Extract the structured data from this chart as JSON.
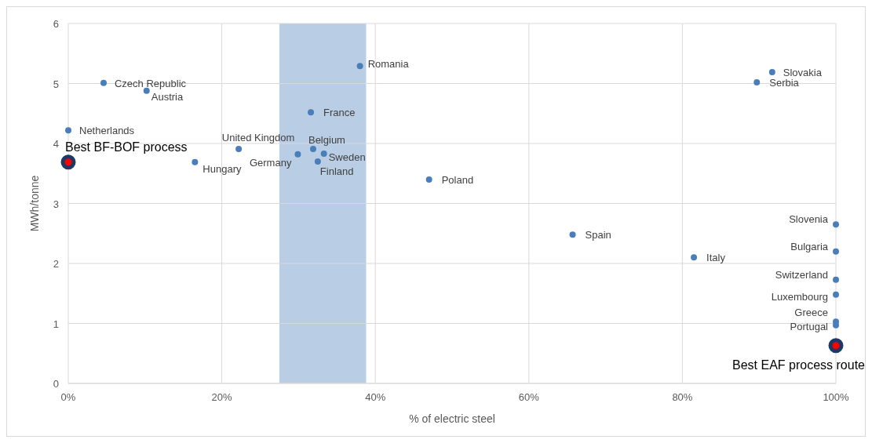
{
  "chart_data": {
    "type": "scatter",
    "xlabel": "% of electric steel",
    "ylabel": "MWh/tonne",
    "xlim": [
      0,
      100
    ],
    "xticks": [
      {
        "value": 0,
        "label": "0%"
      },
      {
        "value": 20,
        "label": "20%"
      },
      {
        "value": 40,
        "label": "40%"
      },
      {
        "value": 60,
        "label": "60%"
      },
      {
        "value": 80,
        "label": "80%"
      },
      {
        "value": 100,
        "label": "100%"
      }
    ],
    "ylim": [
      0,
      6
    ],
    "yticks": [
      0,
      1,
      2,
      3,
      4,
      5,
      6
    ],
    "grid": true,
    "marker": "circle",
    "bands": [
      {
        "axis": "x",
        "from": 27.5,
        "to": 38.8,
        "color": "#b9cde5"
      }
    ],
    "series": [
      {
        "color": "#4a7ebb",
        "x": [
          0,
          4.6,
          10.2,
          16.5,
          22.2,
          29.9,
          31.9,
          32.5,
          33.3,
          31.6,
          38.0,
          47.0,
          65.7,
          81.5,
          89.7,
          91.7,
          100,
          100,
          100,
          100,
          100,
          100
        ],
        "values": [
          4.22,
          5.01,
          4.88,
          3.69,
          3.91,
          3.82,
          3.91,
          3.7,
          3.83,
          4.52,
          5.29,
          3.4,
          2.48,
          2.1,
          5.02,
          5.19,
          2.65,
          2.2,
          1.73,
          1.48,
          1.03,
          0.97
        ]
      },
      {
        "color": "#ff0000",
        "x": [
          0,
          100
        ],
        "values": [
          3.69,
          0.63
        ]
      }
    ],
    "annotations": [
      {
        "text": "Netherlands",
        "x": 0,
        "y": 4.22
      },
      {
        "text": "Czech Republic",
        "x": 4.6,
        "y": 5.01
      },
      {
        "text": "Austria",
        "x": 10.2,
        "y": 4.88
      },
      {
        "text": "Hungary",
        "x": 16.5,
        "y": 3.69
      },
      {
        "text": "United Kingdom",
        "x": 22.2,
        "y": 3.91
      },
      {
        "text": "Germany",
        "x": 29.9,
        "y": 3.82
      },
      {
        "text": "Belgium",
        "x": 31.9,
        "y": 3.91
      },
      {
        "text": "Finland",
        "x": 32.5,
        "y": 3.7
      },
      {
        "text": "Sweden",
        "x": 33.3,
        "y": 3.83
      },
      {
        "text": "France",
        "x": 31.6,
        "y": 4.52
      },
      {
        "text": "Romania",
        "x": 38.0,
        "y": 5.29
      },
      {
        "text": "Poland",
        "x": 47.0,
        "y": 3.4
      },
      {
        "text": "Spain",
        "x": 65.7,
        "y": 2.48
      },
      {
        "text": "Italy",
        "x": 81.5,
        "y": 2.1
      },
      {
        "text": "Serbia",
        "x": 89.7,
        "y": 5.02
      },
      {
        "text": "Slovakia",
        "x": 91.7,
        "y": 5.19
      },
      {
        "text": "Slovenia",
        "x": 100,
        "y": 2.65
      },
      {
        "text": "Bulgaria",
        "x": 100,
        "y": 2.2
      },
      {
        "text": "Switzerland",
        "x": 100,
        "y": 1.73
      },
      {
        "text": "Luxembourg",
        "x": 100,
        "y": 1.48
      },
      {
        "text": "Greece",
        "x": 100,
        "y": 1.03
      },
      {
        "text": "Portugal",
        "x": 100,
        "y": 0.97
      },
      {
        "text": "Best BF-BOF process",
        "x": 0,
        "y": 3.69
      },
      {
        "text": "Best EAF process route",
        "x": 100,
        "y": 0.63
      }
    ]
  }
}
